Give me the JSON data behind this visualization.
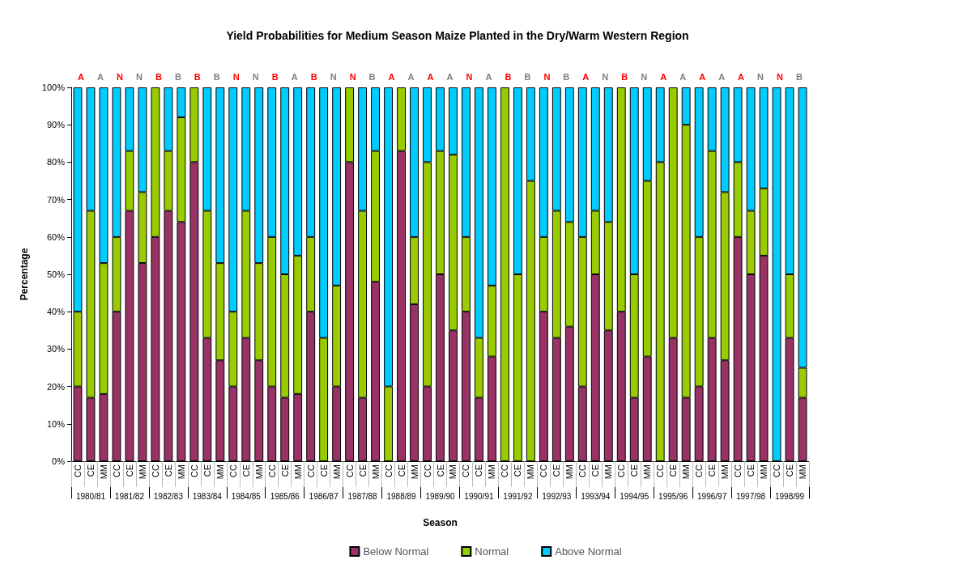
{
  "chart_data": {
    "type": "bar",
    "title": "Yield Probabilities for Medium Season Maize Planted in the Dry/Warm Western Region",
    "xlabel": "Season",
    "ylabel": "Percentage",
    "stacked": true,
    "legend": "bottom",
    "grid": false,
    "categories": [
      "CC",
      "CE",
      "MM",
      "CC",
      "CE",
      "MM",
      "CC",
      "CE",
      "MM",
      "CC",
      "CE",
      "MM",
      "CC",
      "CE",
      "MM",
      "CC",
      "CE",
      "MM",
      "CC",
      "CE",
      "MM",
      "CC",
      "CE",
      "MM",
      "CC",
      "CE",
      "MM",
      "CC",
      "CE",
      "MM",
      "CC",
      "CE",
      "MM",
      "CC",
      "CE",
      "MM",
      "CC",
      "CE",
      "MM",
      "CC",
      "CE",
      "MM",
      "CC",
      "CE",
      "MM",
      "CC",
      "CE",
      "MM",
      "CC",
      "CE",
      "MM",
      "CC",
      "CE",
      "MM",
      "CC",
      "CE",
      "MM"
    ],
    "series": [
      {
        "name": "Below Normal",
        "color": "#993366",
        "values": [
          20,
          17,
          18,
          40,
          67,
          53,
          60,
          67,
          64,
          80,
          33,
          27,
          20,
          33,
          27,
          20,
          17,
          18,
          40,
          0,
          20,
          80,
          17,
          48,
          0,
          83,
          42,
          20,
          50,
          35,
          40,
          17,
          28,
          0,
          0,
          0,
          40,
          33,
          36,
          20,
          50,
          35,
          40,
          17,
          28,
          0,
          33,
          17,
          20,
          33,
          27,
          60,
          50,
          55,
          0,
          33,
          17
        ]
      },
      {
        "name": "Normal",
        "color": "#99cc00",
        "values": [
          20,
          50,
          35,
          20,
          16,
          19,
          40,
          16,
          28,
          20,
          34,
          26,
          20,
          34,
          26,
          40,
          33,
          37,
          20,
          33,
          27,
          20,
          50,
          35,
          20,
          17,
          18,
          60,
          33,
          47,
          20,
          16,
          19,
          100,
          50,
          75,
          20,
          34,
          28,
          40,
          17,
          29,
          60,
          33,
          47,
          80,
          67,
          73,
          40,
          50,
          45,
          20,
          17,
          18,
          0,
          17,
          8
        ]
      },
      {
        "name": "Above Normal",
        "color": "#00ccff",
        "values": [
          60,
          33,
          47,
          40,
          17,
          28,
          0,
          17,
          8,
          0,
          33,
          47,
          60,
          33,
          47,
          40,
          50,
          45,
          40,
          67,
          53,
          0,
          33,
          17,
          80,
          0,
          40,
          20,
          17,
          18,
          40,
          67,
          53,
          0,
          50,
          25,
          40,
          33,
          36,
          40,
          33,
          36,
          0,
          50,
          25,
          20,
          0,
          10,
          40,
          17,
          28,
          20,
          33,
          27,
          100,
          50,
          75
        ]
      }
    ],
    "ylim": [
      0,
      100
    ],
    "yticks": [
      {
        "value": 0,
        "label": "0%"
      },
      {
        "value": 10,
        "label": "10%"
      },
      {
        "value": 20,
        "label": "20%"
      },
      {
        "value": 30,
        "label": "30%"
      },
      {
        "value": 40,
        "label": "40%"
      },
      {
        "value": 50,
        "label": "50%"
      },
      {
        "value": 60,
        "label": "60%"
      },
      {
        "value": 70,
        "label": "70%"
      },
      {
        "value": 80,
        "label": "80%"
      },
      {
        "value": 90,
        "label": "90%"
      },
      {
        "value": 100,
        "label": "100%"
      }
    ],
    "annotations": [
      "1980/81",
      "A",
      "A",
      "1981/82",
      "N",
      "N",
      "1982/83",
      "B",
      "B",
      "1983/84",
      "B",
      "B",
      "1984/85",
      "N",
      "N",
      "1985/86",
      "B",
      "A",
      "1986/87",
      "B",
      "N",
      "1987/88",
      "N",
      "B",
      "1988/89",
      "A",
      "A",
      "1989/90",
      "A",
      "A",
      "1990/91",
      "N",
      "A",
      "1991/92",
      "B",
      "B",
      "1992/93",
      "N",
      "B",
      "1993/94",
      "A",
      "N",
      "1994/95",
      "B",
      "N",
      "1995/96",
      "A",
      "A",
      "1996/97",
      "A",
      "A",
      "1997/98",
      "A",
      "N",
      "1998/99",
      "N",
      "B"
    ]
  }
}
